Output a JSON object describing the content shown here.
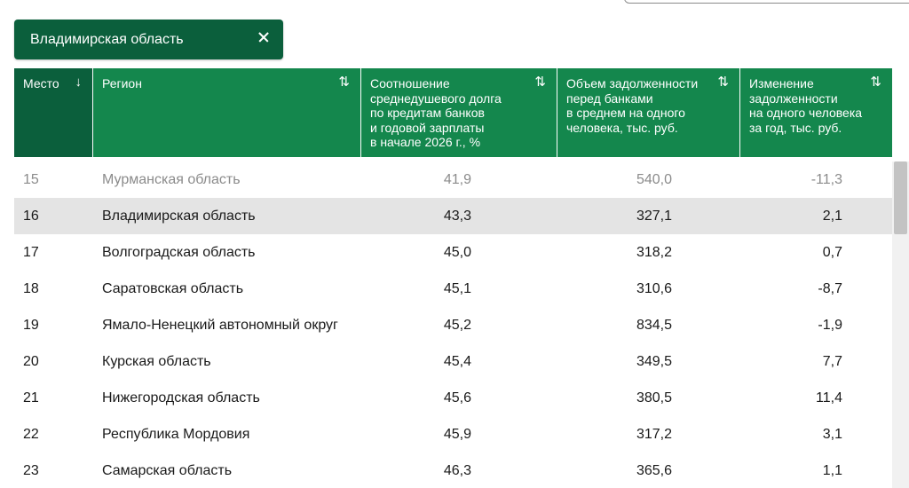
{
  "filter": {
    "label": "Владимирская область"
  },
  "table": {
    "headers": [
      {
        "label": "Место",
        "sort": "↓"
      },
      {
        "label": "Регион",
        "sort": "⇅"
      },
      {
        "label": "Соотношение\nсреднедушевого долга\nпо кредитам банков\nи годовой зарплаты\nв начале 2026 г., %",
        "sort": "⇅"
      },
      {
        "label": "Объем задолженности\nперед банками\nв среднем на одного\nчеловека, тыс. руб.",
        "sort": "⇅"
      },
      {
        "label": "Изменение\nзадолженности\nна одного человека\nза год, тыс. руб.",
        "sort": "⇅"
      }
    ],
    "rows": [
      {
        "place": "15",
        "region": "Мурманская область",
        "ratio": "41,9",
        "debt": "540,0",
        "change": "-11,3"
      },
      {
        "place": "16",
        "region": "Владимирская область",
        "ratio": "43,3",
        "debt": "327,1",
        "change": "2,1"
      },
      {
        "place": "17",
        "region": "Волгоградская область",
        "ratio": "45,0",
        "debt": "318,2",
        "change": "0,7"
      },
      {
        "place": "18",
        "region": "Саратовская область",
        "ratio": "45,1",
        "debt": "310,6",
        "change": "-8,7"
      },
      {
        "place": "19",
        "region": "Ямало-Ненецкий автономный округ",
        "ratio": "45,2",
        "debt": "834,5",
        "change": "-1,9"
      },
      {
        "place": "20",
        "region": "Курская область",
        "ratio": "45,4",
        "debt": "349,5",
        "change": "7,7"
      },
      {
        "place": "21",
        "region": "Нижегородская область",
        "ratio": "45,6",
        "debt": "380,5",
        "change": "11,4"
      },
      {
        "place": "22",
        "region": "Республика Мордовия",
        "ratio": "45,9",
        "debt": "317,2",
        "change": "3,1"
      },
      {
        "place": "23",
        "region": "Самарская область",
        "ratio": "46,3",
        "debt": "365,6",
        "change": "1,1"
      }
    ],
    "highlighted_row": 1,
    "faded_row": 0
  },
  "colors": {
    "header_green": "#14874d",
    "header_dark_green": "#0b5f3c",
    "chip_green": "#0b5f3c",
    "highlight_row": "#e4e4e4"
  }
}
